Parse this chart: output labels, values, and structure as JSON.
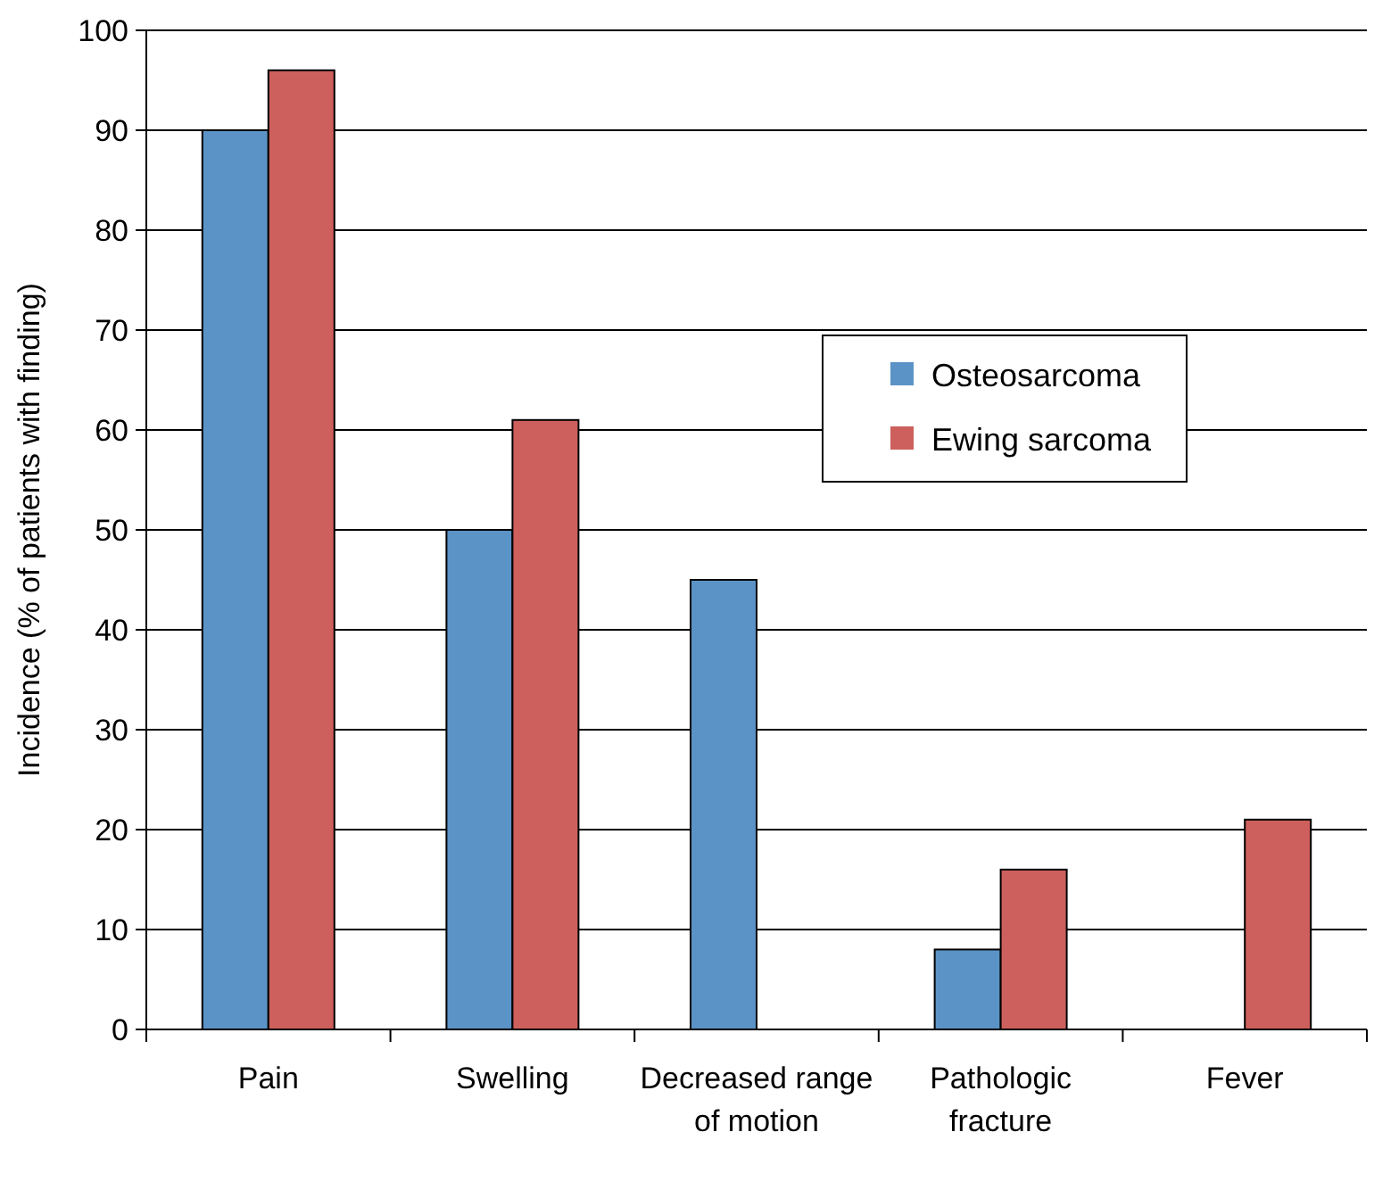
{
  "chart_data": {
    "type": "bar",
    "ylabel": "Incidence (% of patients with finding)",
    "categories": [
      "Pain",
      "Swelling",
      "Decreased range of motion",
      "Pathologic fracture",
      "Fever"
    ],
    "series": [
      {
        "name": "Osteosarcoma",
        "color": "#5b93c6",
        "values": [
          90,
          50,
          45,
          8,
          null
        ]
      },
      {
        "name": "Ewing sarcoma",
        "color": "#cd605c",
        "values": [
          96,
          61,
          null,
          16,
          21
        ]
      }
    ],
    "ylim": [
      0,
      100
    ],
    "yticks": [
      0,
      10,
      20,
      30,
      40,
      50,
      60,
      70,
      80,
      90,
      100
    ],
    "grid": "y",
    "legend": "right"
  }
}
